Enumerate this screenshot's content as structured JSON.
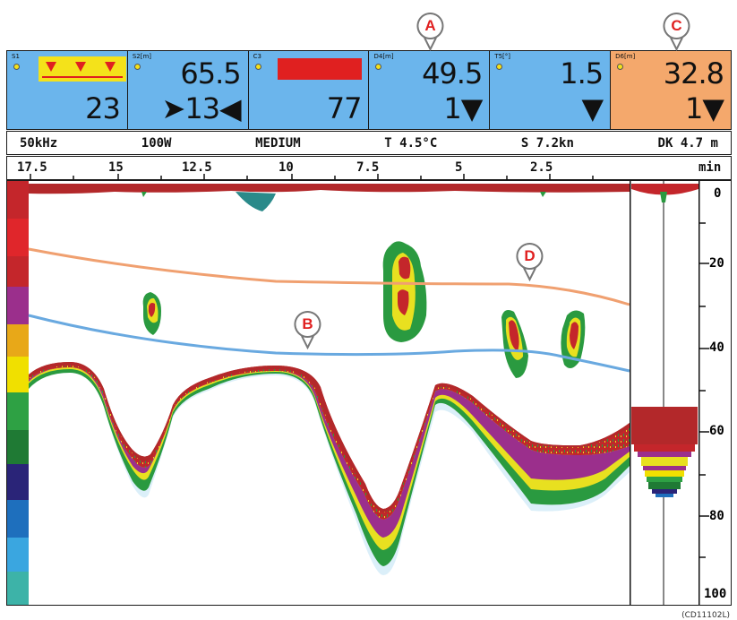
{
  "panels": [
    {
      "label": "S1",
      "bottom": "23",
      "alarm_color": "#f4e21a"
    },
    {
      "label": "S2[m]",
      "top": "65.5",
      "bottom": "➤13◀"
    },
    {
      "label": "C3",
      "bottom": "77",
      "bar_color": "#e02020"
    },
    {
      "label": "D4[m]",
      "top": "49.5",
      "bottom": "1▼"
    },
    {
      "label": "T5[°]",
      "top": "1.5",
      "bottom": "▼"
    },
    {
      "label": "D6[m]",
      "top": "32.8",
      "bottom": "1▼",
      "bg": "#f4a86c"
    }
  ],
  "status": {
    "freq": "50kHz",
    "power": "100W",
    "mode": "MEDIUM",
    "temp": "T 4.5°C",
    "speed": "S 7.2kn",
    "depth": "DK 4.7 m"
  },
  "time_axis": {
    "ticks": [
      "17.5",
      "15",
      "12.5",
      "10",
      "7.5",
      "5",
      "2.5"
    ],
    "unit": "min"
  },
  "depth_axis": {
    "ticks": [
      "0",
      "20",
      "40",
      "60",
      "80",
      "100"
    ]
  },
  "callouts": [
    "A",
    "B",
    "C",
    "D"
  ],
  "source": "(CD11102L)",
  "colors": {
    "panel_blue": "#6bb5ec",
    "panel_orange": "#f4a86c",
    "line_d": "#f0a070",
    "line_b": "#69a9e0"
  }
}
